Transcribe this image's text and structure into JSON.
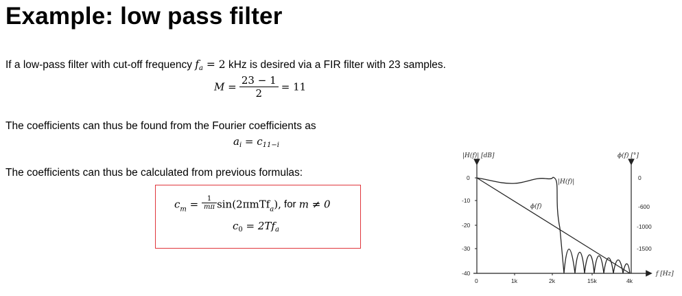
{
  "title": "Example: low pass filter",
  "intro": {
    "before": "If a low-pass filter with cut-off frequency ",
    "var_f": "f",
    "var_f_sub": "a",
    "eq": " = 2",
    "after": " kHz is desired via a FIR filter with 23 samples."
  },
  "eq_M": {
    "lhs": "M =",
    "num": "23 − 1",
    "den": "2",
    "rhs": "= 11"
  },
  "coeff_text": "The coefficients can thus be found from the Fourier coefficients as",
  "eq_a": {
    "a": "a",
    "a_sub": "i",
    "mid": " = ",
    "c": "c",
    "c_sub": "11−i"
  },
  "calc_text": "The coefficients can thus be calculated from previous formulas:",
  "box": {
    "c": "c",
    "c_sub_m": "m",
    "eq": " = ",
    "frac_num": "1",
    "frac_den": "mπ",
    "sin_part": "sin(2πmTf",
    "sin_sub": "a",
    "sin_close": "),",
    "for_text": " for ",
    "cond": "m ≠ 0",
    "c0_sub": "0",
    "c0_rhs": " = 2Tf",
    "c0_sub_a": "a"
  },
  "plot": {
    "left_axis_label": "|H(f)| [dB]",
    "right_axis_label": "ϕ(f) [°]",
    "mag_label": "|H(f)|",
    "phase_label": "ϕ(f)",
    "freq_label": "f [Hz]",
    "left_ticks": [
      "0",
      "-10",
      "-20",
      "-30",
      "-40"
    ],
    "right_ticks": [
      "0",
      "-600",
      "-1000",
      "-1500"
    ],
    "x_ticks": [
      "0",
      "1k",
      "2k",
      "15k",
      "4k"
    ]
  }
}
